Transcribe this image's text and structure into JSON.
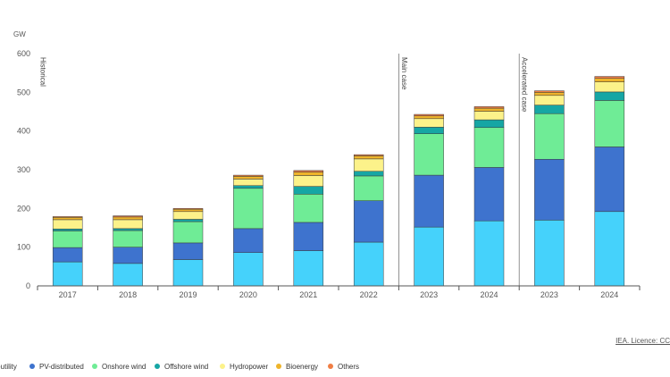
{
  "chart_data": {
    "type": "bar",
    "stacked": true,
    "ylabel": "GW",
    "ylim": [
      0,
      600
    ],
    "yticks": [
      0,
      100,
      200,
      300,
      400,
      500,
      600
    ],
    "grid": false,
    "legend_position": "bottom",
    "categories": [
      "2017",
      "2018",
      "2019",
      "2020",
      "2021",
      "2022",
      "2023",
      "2024",
      "2023",
      "2024"
    ],
    "sections": [
      {
        "label": "Historical",
        "start_index": 0
      },
      {
        "label": "Main case",
        "start_index": 6
      },
      {
        "label": "Accelerated case",
        "start_index": 8
      }
    ],
    "series": [
      {
        "name": "PV-utility",
        "legend_label": "-utility",
        "color": "#45D2FB",
        "values": [
          62,
          58,
          68,
          86,
          91,
          113,
          152,
          168,
          170,
          192
        ]
      },
      {
        "name": "PV-distributed",
        "color": "#3E73CE",
        "values": [
          37,
          42,
          43,
          62,
          73,
          107,
          134,
          138,
          157,
          167
        ]
      },
      {
        "name": "Onshore wind",
        "color": "#6FEC96",
        "values": [
          43,
          43,
          55,
          104,
          73,
          64,
          107,
          103,
          118,
          120
        ]
      },
      {
        "name": "Offshore wind",
        "color": "#16A6A4",
        "values": [
          5,
          5,
          6,
          7,
          20,
          12,
          17,
          20,
          22,
          22
        ]
      },
      {
        "name": "Hydropower",
        "color": "#FCF28A",
        "values": [
          24,
          23,
          20,
          17,
          28,
          32,
          22,
          22,
          25,
          26
        ]
      },
      {
        "name": "Bioenergy",
        "color": "#EEB42B",
        "values": [
          6,
          7,
          6,
          7,
          9,
          8,
          7,
          8,
          8,
          9
        ]
      },
      {
        "name": "Others",
        "color": "#F07E44",
        "values": [
          2,
          3,
          2,
          3,
          4,
          3,
          4,
          4,
          4,
          5
        ]
      }
    ]
  },
  "source": "IEA. Licence: CC"
}
